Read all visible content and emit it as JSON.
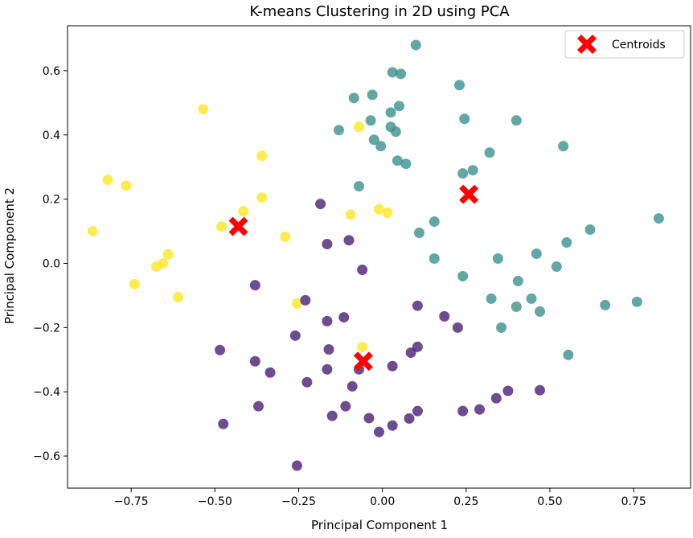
{
  "chart_data": {
    "type": "scatter",
    "title": "K-means Clustering in 2D using PCA",
    "xlabel": "Principal Component 1",
    "ylabel": "Principal Component 2",
    "xlim": [
      -0.94,
      0.92
    ],
    "ylim": [
      -0.7,
      0.74
    ],
    "xticks": [
      -0.75,
      -0.5,
      -0.25,
      0.0,
      0.25,
      0.5,
      0.75
    ],
    "xtick_labels": [
      "−0.75",
      "−0.50",
      "−0.25",
      "0.00",
      "0.25",
      "0.50",
      "0.75"
    ],
    "yticks": [
      -0.6,
      -0.4,
      -0.2,
      0.0,
      0.2,
      0.4,
      0.6
    ],
    "ytick_labels": [
      "−0.6",
      "−0.4",
      "−0.2",
      "0.0",
      "0.2",
      "0.4",
      "0.6"
    ],
    "grid": false,
    "legend": {
      "position": "upper right",
      "entries": [
        "Centroids"
      ]
    },
    "series": [
      {
        "color": "#3b918c",
        "points": [
          [
            0.1,
            0.68
          ],
          [
            0.03,
            0.595
          ],
          [
            0.055,
            0.59
          ],
          [
            0.23,
            0.555
          ],
          [
            -0.085,
            0.515
          ],
          [
            -0.03,
            0.525
          ],
          [
            0.05,
            0.49
          ],
          [
            0.025,
            0.47
          ],
          [
            -0.035,
            0.445
          ],
          [
            0.245,
            0.45
          ],
          [
            0.4,
            0.445
          ],
          [
            -0.13,
            0.415
          ],
          [
            0.025,
            0.425
          ],
          [
            0.04,
            0.41
          ],
          [
            -0.025,
            0.385
          ],
          [
            -0.005,
            0.365
          ],
          [
            0.32,
            0.345
          ],
          [
            0.54,
            0.365
          ],
          [
            0.045,
            0.32
          ],
          [
            0.07,
            0.31
          ],
          [
            0.27,
            0.29
          ],
          [
            0.24,
            0.28
          ],
          [
            -0.07,
            0.24
          ],
          [
            0.825,
            0.14
          ],
          [
            0.155,
            0.13
          ],
          [
            0.11,
            0.095
          ],
          [
            0.62,
            0.105
          ],
          [
            0.55,
            0.065
          ],
          [
            0.155,
            0.015
          ],
          [
            0.345,
            0.015
          ],
          [
            0.46,
            0.03
          ],
          [
            0.52,
            -0.01
          ],
          [
            0.24,
            -0.04
          ],
          [
            0.405,
            -0.055
          ],
          [
            0.325,
            -0.11
          ],
          [
            0.445,
            -0.11
          ],
          [
            0.4,
            -0.135
          ],
          [
            0.665,
            -0.13
          ],
          [
            0.76,
            -0.12
          ],
          [
            0.47,
            -0.15
          ],
          [
            0.355,
            -0.2
          ],
          [
            0.555,
            -0.285
          ]
        ]
      },
      {
        "color": "#fde725",
        "points": [
          [
            -0.535,
            0.48
          ],
          [
            -0.07,
            0.425
          ],
          [
            -0.36,
            0.335
          ],
          [
            -0.82,
            0.26
          ],
          [
            -0.765,
            0.242
          ],
          [
            -0.36,
            0.205
          ],
          [
            -0.01,
            0.168
          ],
          [
            -0.415,
            0.162
          ],
          [
            0.015,
            0.158
          ],
          [
            -0.095,
            0.152
          ],
          [
            -0.48,
            0.115
          ],
          [
            -0.865,
            0.1
          ],
          [
            -0.29,
            0.083
          ],
          [
            -0.64,
            0.028
          ],
          [
            -0.655,
            0.0
          ],
          [
            -0.675,
            -0.01
          ],
          [
            -0.74,
            -0.065
          ],
          [
            -0.61,
            -0.105
          ],
          [
            -0.255,
            -0.125
          ],
          [
            -0.06,
            -0.26
          ]
        ]
      },
      {
        "color": "#482173",
        "points": [
          [
            -0.185,
            0.185
          ],
          [
            -0.165,
            0.06
          ],
          [
            -0.1,
            0.072
          ],
          [
            -0.06,
            -0.02
          ],
          [
            -0.38,
            -0.068
          ],
          [
            -0.23,
            -0.115
          ],
          [
            0.105,
            -0.132
          ],
          [
            0.185,
            -0.165
          ],
          [
            -0.115,
            -0.168
          ],
          [
            -0.165,
            -0.18
          ],
          [
            0.225,
            -0.2
          ],
          [
            -0.26,
            -0.225
          ],
          [
            0.105,
            -0.26
          ],
          [
            -0.485,
            -0.27
          ],
          [
            -0.16,
            -0.268
          ],
          [
            0.085,
            -0.278
          ],
          [
            -0.38,
            -0.305
          ],
          [
            -0.07,
            -0.33
          ],
          [
            0.03,
            -0.32
          ],
          [
            -0.165,
            -0.33
          ],
          [
            -0.335,
            -0.34
          ],
          [
            -0.225,
            -0.37
          ],
          [
            -0.09,
            -0.383
          ],
          [
            0.375,
            -0.397
          ],
          [
            0.47,
            -0.395
          ],
          [
            0.34,
            -0.42
          ],
          [
            -0.37,
            -0.445
          ],
          [
            -0.11,
            -0.445
          ],
          [
            0.29,
            -0.455
          ],
          [
            0.24,
            -0.46
          ],
          [
            0.105,
            -0.46
          ],
          [
            -0.15,
            -0.475
          ],
          [
            -0.04,
            -0.482
          ],
          [
            0.08,
            -0.483
          ],
          [
            -0.475,
            -0.5
          ],
          [
            0.03,
            -0.505
          ],
          [
            -0.01,
            -0.525
          ],
          [
            -0.255,
            -0.63
          ]
        ]
      }
    ],
    "centroids": {
      "name": "Centroids",
      "color": "#ff0000",
      "points": [
        [
          -0.43,
          0.115
        ],
        [
          0.258,
          0.215
        ],
        [
          -0.057,
          -0.305
        ]
      ]
    }
  }
}
